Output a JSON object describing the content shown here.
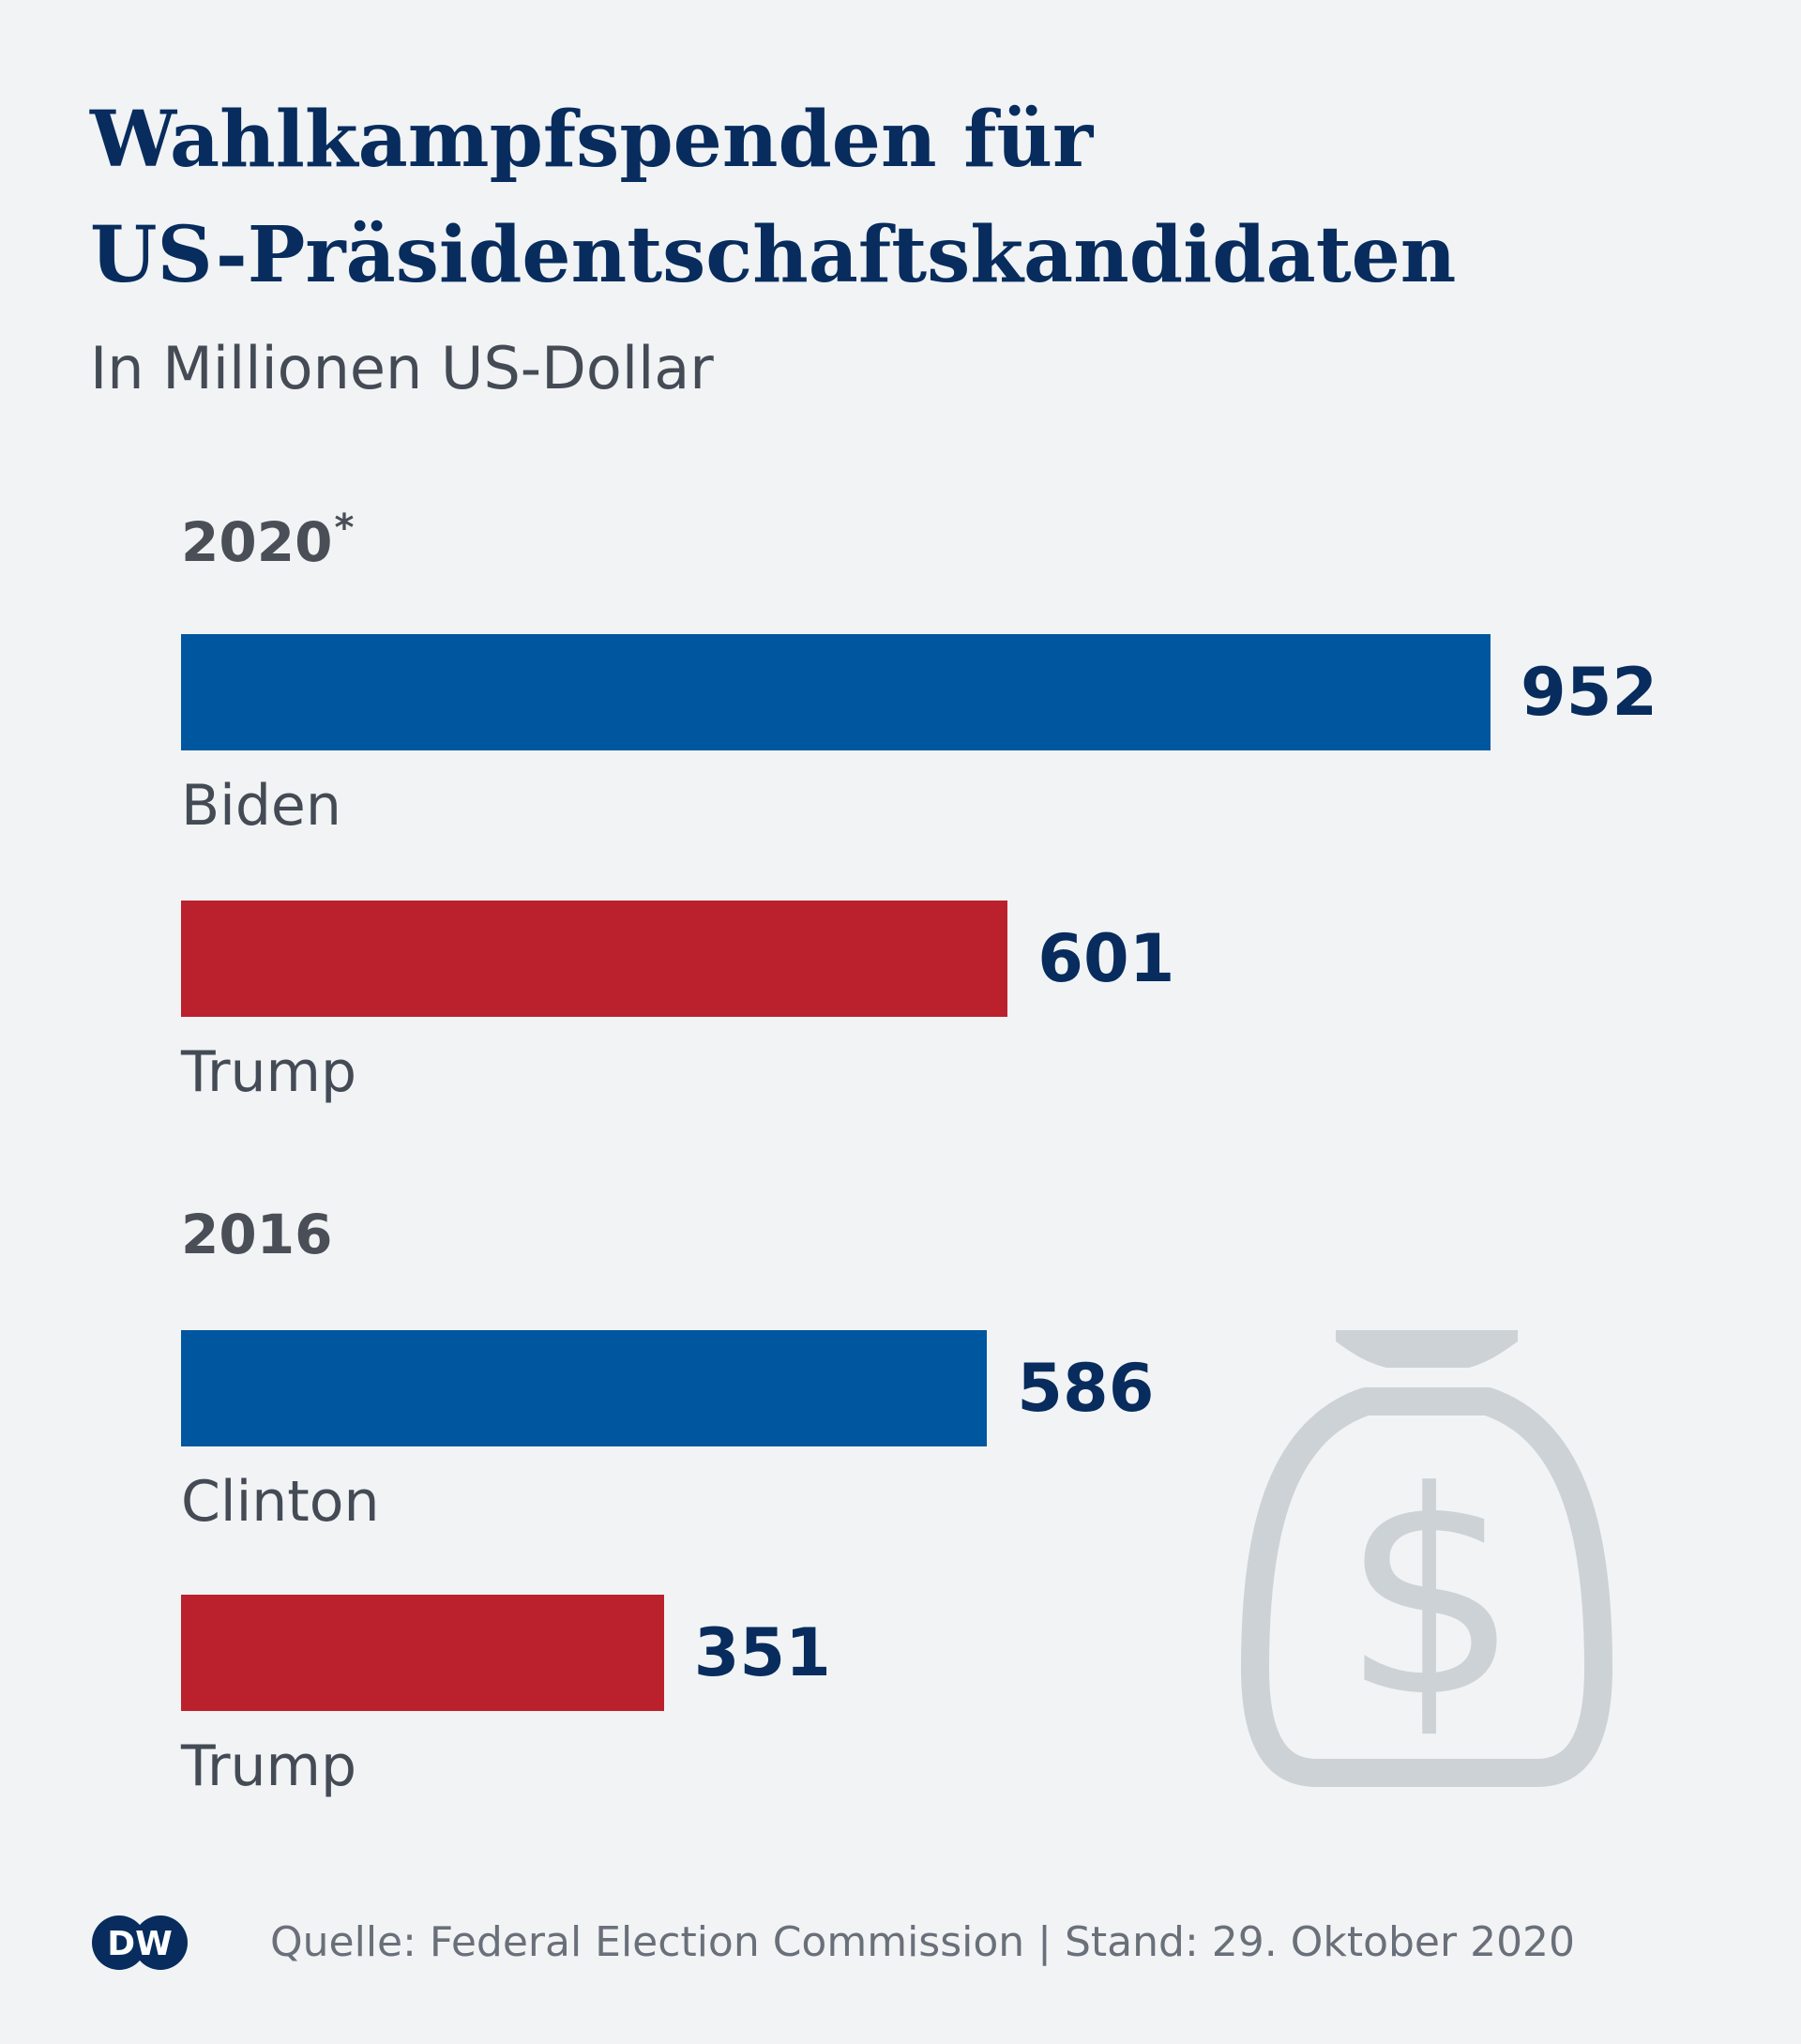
{
  "chart_data": {
    "type": "bar",
    "title_lines": [
      "Wahlkampfspenden für",
      "US-Präsidentschaftskandidaten"
    ],
    "subtitle": "In Millionen US-Dollar",
    "orientation": "horizontal",
    "groups": [
      {
        "year": "2020",
        "marker": "*",
        "bars": [
          {
            "name": "Biden",
            "value": 952,
            "color": "#00579f"
          },
          {
            "name": "Trump",
            "value": 601,
            "color": "#bb212d"
          }
        ]
      },
      {
        "year": "2016",
        "marker": "",
        "bars": [
          {
            "name": "Clinton",
            "value": 586,
            "color": "#00579f"
          },
          {
            "name": "Trump",
            "value": 351,
            "color": "#bb212d"
          }
        ]
      }
    ],
    "grid": false,
    "legend": "none"
  },
  "footer": {
    "logo_text": "DW",
    "source": "Quelle: Federal Election Commission | Stand: 29. Oktober 2020"
  },
  "icons": {
    "money_bag": "money-bag-icon",
    "logo": "dw-logo-icon"
  },
  "colors": {
    "background": "#f1f3f5",
    "title": "#072c5d",
    "democrat": "#00579f",
    "republican": "#bb212d",
    "icon": "#cdd2d7"
  }
}
